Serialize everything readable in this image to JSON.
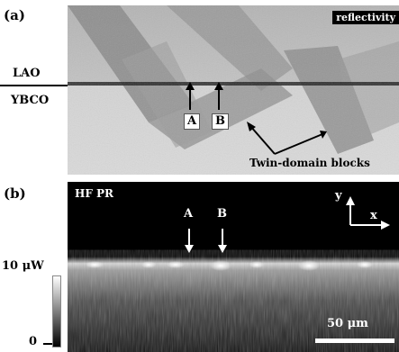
{
  "figure": {
    "panel_a": {
      "label": "(a)",
      "mode": "reflectivity",
      "layer_top": "LAO",
      "layer_bottom": "YBCO",
      "marker_a": "A",
      "marker_b": "B",
      "annotation": "Twin-domain blocks"
    },
    "panel_b": {
      "label": "(b)",
      "mode": "HF PR",
      "marker_a": "A",
      "marker_b": "B",
      "axis_y": "y",
      "axis_x": "x",
      "scale_bar": "50 μm",
      "colorbar_max": "10 μW",
      "colorbar_min": "0"
    }
  }
}
